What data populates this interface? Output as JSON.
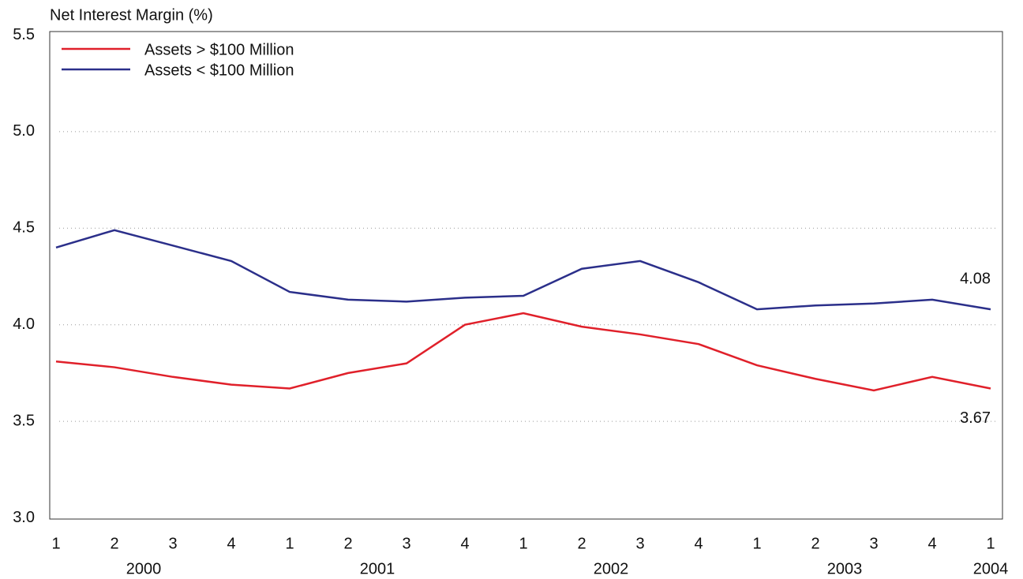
{
  "chart_data": {
    "type": "line",
    "y_label": "Net Interest Margin (%)",
    "categories": [
      "1",
      "2",
      "3",
      "4",
      "1",
      "2",
      "3",
      "4",
      "1",
      "2",
      "3",
      "4",
      "1",
      "2",
      "3",
      "4",
      "1"
    ],
    "x_groups": [
      "2000",
      "2001",
      "2002",
      "2003",
      "2004"
    ],
    "series": [
      {
        "name": "Assets > $100 Million",
        "color": "#e0202a",
        "values": [
          3.81,
          3.78,
          3.73,
          3.69,
          3.67,
          3.75,
          3.8,
          4.0,
          4.06,
          3.99,
          3.95,
          3.9,
          3.79,
          3.72,
          3.66,
          3.73,
          3.67
        ]
      },
      {
        "name": "Assets < $100 Million",
        "color": "#2b2f8a",
        "values": [
          4.4,
          4.49,
          4.41,
          4.33,
          4.17,
          4.13,
          4.12,
          4.14,
          4.15,
          4.29,
          4.33,
          4.22,
          4.08,
          4.1,
          4.11,
          4.13,
          4.08
        ]
      }
    ],
    "ylim": [
      3.0,
      5.5
    ],
    "yticks": [
      {
        "value": 3.0,
        "label": "3.0"
      },
      3.5,
      {
        "value": 4.0,
        "label": "4.0"
      },
      4.5,
      {
        "value": 5.0,
        "label": "5.0"
      },
      5.5
    ],
    "grid": true,
    "legend": "top-left"
  }
}
